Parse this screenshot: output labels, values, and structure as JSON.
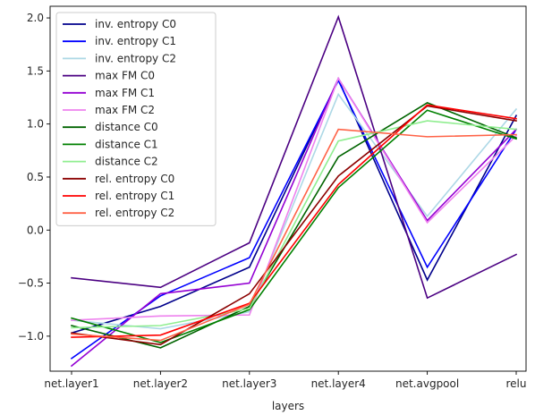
{
  "chart_data": {
    "type": "line",
    "xlabel": "layers",
    "ylabel": "",
    "categories": [
      "net.layer1",
      "net.layer2",
      "net.layer3",
      "net.layer4",
      "net.avgpool",
      "relu"
    ],
    "ylim": [
      -1.33,
      2.11
    ],
    "yticks": [
      -1.0,
      -0.5,
      0.0,
      0.5,
      1.0,
      1.5,
      2.0
    ],
    "ytick_labels": [
      "−1.0",
      "−0.5",
      "0.0",
      "0.5",
      "1.0",
      "1.5",
      "2.0"
    ],
    "legend": "top-left",
    "grid": false,
    "series": [
      {
        "name": "inv. entropy C0",
        "color": "#00008b",
        "values": [
          -0.97,
          -0.72,
          -0.35,
          1.42,
          -0.47,
          1.08
        ]
      },
      {
        "name": "inv. entropy C1",
        "color": "#0000ff",
        "values": [
          -1.21,
          -0.62,
          -0.26,
          1.41,
          -0.35,
          0.95
        ]
      },
      {
        "name": "inv. entropy C2",
        "color": "#add8e6",
        "values": [
          -0.85,
          -0.93,
          -0.77,
          1.28,
          0.13,
          1.14
        ]
      },
      {
        "name": "max FM C0",
        "color": "#4b0082",
        "values": [
          -0.45,
          -0.54,
          -0.12,
          2.01,
          -0.64,
          -0.23
        ]
      },
      {
        "name": "max FM C1",
        "color": "#9400d3",
        "values": [
          -1.28,
          -0.6,
          -0.5,
          1.43,
          0.09,
          0.95
        ]
      },
      {
        "name": "max FM C2",
        "color": "#ee82ee",
        "values": [
          -0.85,
          -0.81,
          -0.8,
          1.43,
          0.07,
          0.89
        ]
      },
      {
        "name": "distance C0",
        "color": "#006400",
        "values": [
          -0.9,
          -1.11,
          -0.72,
          0.69,
          1.2,
          0.87
        ]
      },
      {
        "name": "distance C1",
        "color": "#008000",
        "values": [
          -0.83,
          -1.06,
          -0.75,
          0.4,
          1.13,
          0.86
        ]
      },
      {
        "name": "distance C2",
        "color": "#90ee90",
        "values": [
          -0.92,
          -0.9,
          -0.74,
          0.84,
          1.03,
          0.95
        ]
      },
      {
        "name": "rel. entropy C0",
        "color": "#8b0000",
        "values": [
          -0.97,
          -1.08,
          -0.6,
          0.51,
          1.17,
          1.03
        ]
      },
      {
        "name": "rel. entropy C1",
        "color": "#ff0000",
        "values": [
          -1.01,
          -0.99,
          -0.69,
          0.43,
          1.18,
          1.05
        ]
      },
      {
        "name": "rel. entropy C2",
        "color": "#ff6347",
        "values": [
          -0.98,
          -1.04,
          -0.7,
          0.95,
          0.88,
          0.9
        ]
      }
    ]
  }
}
